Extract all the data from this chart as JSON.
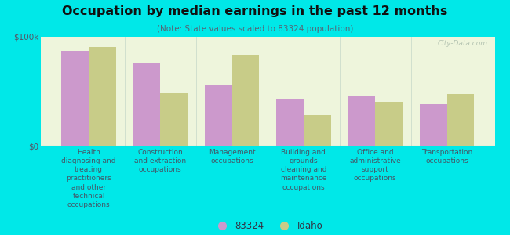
{
  "title": "Occupation by median earnings in the past 12 months",
  "subtitle": "(Note: State values scaled to 83324 population)",
  "background_color": "#00e8e8",
  "plot_bg_gradient_top": "#eef5dc",
  "plot_bg_gradient_bottom": "#f5faee",
  "categories": [
    "Health\ndiagnosing and\ntreating\npractitioners\nand other\ntechnical\noccupations",
    "Construction\nand extraction\noccupations",
    "Management\noccupations",
    "Building and\ngrounds\ncleaning and\nmaintenance\noccupations",
    "Office and\nadministrative\nsupport\noccupations",
    "Transportation\noccupations"
  ],
  "values_83324": [
    87000,
    75000,
    55000,
    42000,
    45000,
    38000
  ],
  "values_idaho": [
    90000,
    48000,
    83000,
    28000,
    40000,
    47000
  ],
  "color_83324": "#cc99cc",
  "color_idaho": "#c8cc88",
  "ylim": [
    0,
    100000
  ],
  "yticks": [
    0,
    100000
  ],
  "ytick_labels": [
    "$0",
    "$100k"
  ],
  "legend_labels": [
    "83324",
    "Idaho"
  ],
  "watermark": "City-Data.com"
}
